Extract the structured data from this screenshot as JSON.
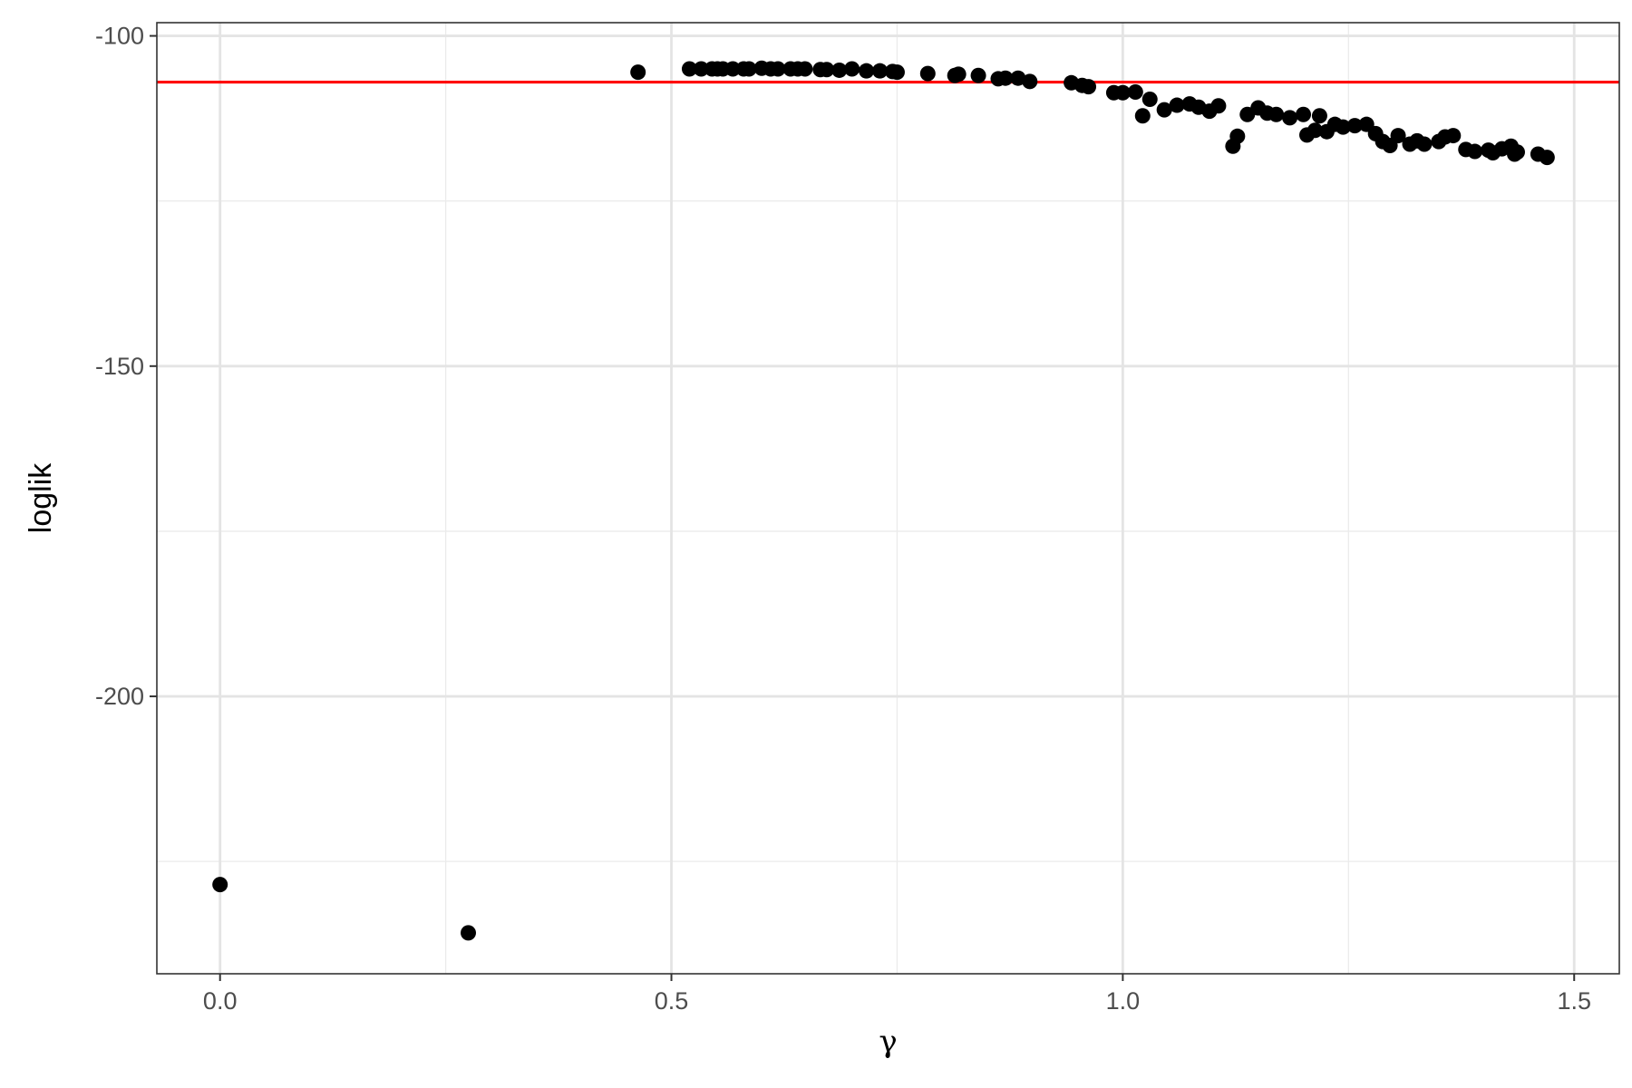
{
  "chart_data": {
    "type": "scatter",
    "title": "",
    "xlabel": "γ",
    "ylabel": "loglik",
    "xlim": [
      -0.07,
      1.55
    ],
    "ylim": [
      -242,
      -98
    ],
    "x_ticks": [
      0.0,
      0.5,
      1.0,
      1.5
    ],
    "x_tick_labels": [
      "0.0",
      "0.5",
      "1.0",
      "1.5"
    ],
    "y_ticks": [
      -100,
      -150,
      -200
    ],
    "y_tick_labels": [
      "-100",
      "-150",
      "-200"
    ],
    "y_minor_ticks": [
      -125,
      -175,
      -225
    ],
    "x_minor_ticks": [
      0.25,
      0.75,
      1.25
    ],
    "grid": true,
    "hline": {
      "y": -107,
      "color": "#ff0000"
    },
    "point_color": "#000000",
    "series": [
      {
        "x": [
          0.0,
          0.275,
          0.463,
          0.52,
          0.533,
          0.545,
          0.551,
          0.557,
          0.568,
          0.58,
          0.586,
          0.6,
          0.61,
          0.618,
          0.632,
          0.64,
          0.648,
          0.665,
          0.672,
          0.686,
          0.7,
          0.716,
          0.731,
          0.745,
          0.75,
          0.784,
          0.814,
          0.818,
          0.84,
          0.862,
          0.87,
          0.884,
          0.897,
          0.943,
          0.955,
          0.962,
          0.99,
          1.0,
          1.014,
          1.022,
          1.03,
          1.046,
          1.06,
          1.074,
          1.084,
          1.096,
          1.106,
          1.122,
          1.127,
          1.138,
          1.15,
          1.16,
          1.17,
          1.185,
          1.2,
          1.204,
          1.213,
          1.218,
          1.226,
          1.235,
          1.244,
          1.257,
          1.27,
          1.28,
          1.288,
          1.296,
          1.305,
          1.318,
          1.326,
          1.334,
          1.35,
          1.357,
          1.366,
          1.38,
          1.39,
          1.405,
          1.41,
          1.42,
          1.43,
          1.434,
          1.437,
          1.46,
          1.47
        ],
        "y": [
          -228.5,
          -235.8,
          -105.5,
          -105.0,
          -105.0,
          -105.0,
          -105.0,
          -105.0,
          -105.0,
          -105.0,
          -105.0,
          -104.9,
          -105.0,
          -105.0,
          -105.0,
          -105.0,
          -105.0,
          -105.1,
          -105.1,
          -105.2,
          -105.0,
          -105.3,
          -105.3,
          -105.4,
          -105.5,
          -105.7,
          -106.0,
          -105.8,
          -106.0,
          -106.5,
          -106.4,
          -106.4,
          -106.9,
          -107.1,
          -107.5,
          -107.7,
          -108.6,
          -108.6,
          -108.5,
          -112.1,
          -109.6,
          -111.2,
          -110.5,
          -110.3,
          -110.8,
          -111.4,
          -110.6,
          -116.7,
          -115.2,
          -111.9,
          -110.9,
          -111.7,
          -111.9,
          -112.4,
          -111.9,
          -115.0,
          -114.3,
          -112.1,
          -114.5,
          -113.4,
          -113.8,
          -113.6,
          -113.4,
          -114.8,
          -116.0,
          -116.6,
          -115.1,
          -116.4,
          -115.9,
          -116.4,
          -116.0,
          -115.3,
          -115.1,
          -117.2,
          -117.5,
          -117.3,
          -117.7,
          -117.1,
          -116.7,
          -117.9,
          -117.6,
          -117.9,
          -118.4
        ]
      }
    ]
  }
}
